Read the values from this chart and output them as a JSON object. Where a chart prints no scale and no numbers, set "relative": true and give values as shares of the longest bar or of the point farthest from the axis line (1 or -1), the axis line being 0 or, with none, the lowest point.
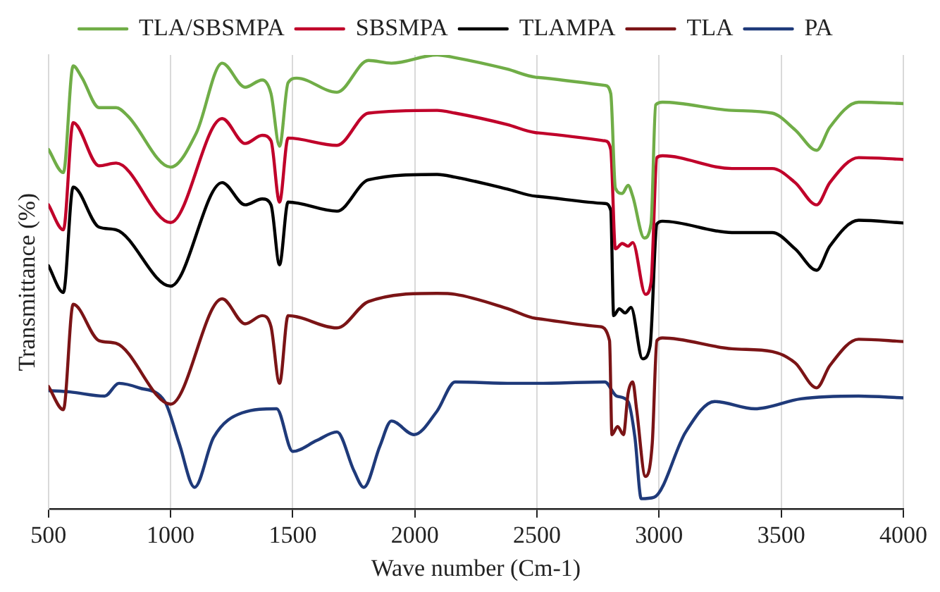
{
  "chart_data": {
    "type": "line",
    "relative": true,
    "xlabel": "Wave number (Cm-1)",
    "ylabel": "Transmittance (%)",
    "xlim": [
      500,
      4000
    ],
    "xticks": [
      500,
      1000,
      1500,
      2000,
      2500,
      3000,
      3500,
      4000
    ],
    "grid": "x",
    "legend": "top",
    "marker": "none",
    "line_style": "solid",
    "series": [
      {
        "name": "TLA/SBSMPA",
        "color": "#70ad47",
        "x": [
          500,
          561,
          601,
          636,
          707,
          777,
          824,
          1000,
          1106,
          1211,
          1305,
          1375,
          1411,
          1446,
          1481,
          1516,
          1681,
          1810,
          1904,
          2091,
          2165,
          2377,
          2495,
          2778,
          2802,
          2821,
          2849,
          2873,
          2892,
          2939,
          2967,
          2986,
          3014,
          3298,
          3463,
          3557,
          3645,
          3699,
          3817,
          4000
        ],
        "values": [
          0.792,
          0.741,
          0.976,
          0.951,
          0.884,
          0.884,
          0.866,
          0.753,
          0.829,
          0.982,
          0.929,
          0.945,
          0.915,
          0.799,
          0.939,
          0.949,
          0.918,
          0.988,
          0.982,
          1,
          0.994,
          0.969,
          0.951,
          0.933,
          0.915,
          0.707,
          0.695,
          0.713,
          0.689,
          0.597,
          0.628,
          0.89,
          0.896,
          0.878,
          0.872,
          0.835,
          0.79,
          0.841,
          0.896,
          0.893
        ]
      },
      {
        "name": "SBSMPA",
        "color": "#c0002a",
        "x": [
          500,
          561,
          601,
          707,
          777,
          1000,
          1211,
          1305,
          1375,
          1411,
          1446,
          1481,
          1681,
          1810,
          2091,
          2165,
          2377,
          2495,
          2778,
          2802,
          2821,
          2849,
          2873,
          2892,
          2944,
          2967,
          2991,
          3014,
          3298,
          3463,
          3557,
          3645,
          3699,
          3817,
          4000
        ],
        "values": [
          0.67,
          0.615,
          0.851,
          0.756,
          0.762,
          0.631,
          0.86,
          0.805,
          0.823,
          0.811,
          0.676,
          0.817,
          0.801,
          0.872,
          0.878,
          0.872,
          0.847,
          0.829,
          0.811,
          0.792,
          0.573,
          0.585,
          0.579,
          0.587,
          0.473,
          0.499,
          0.774,
          0.778,
          0.75,
          0.75,
          0.719,
          0.67,
          0.719,
          0.774,
          0.77
        ]
      },
      {
        "name": "TLAMPA",
        "color": "#000000",
        "x": [
          500,
          561,
          601,
          707,
          777,
          1000,
          1211,
          1305,
          1375,
          1411,
          1446,
          1481,
          1681,
          1810,
          2091,
          2165,
          2377,
          2495,
          2778,
          2802,
          2814,
          2837,
          2861,
          2885,
          2932,
          2963,
          2991,
          3014,
          3298,
          3463,
          3557,
          3645,
          3699,
          3817,
          4000
        ],
        "values": [
          0.536,
          0.477,
          0.709,
          0.621,
          0.615,
          0.491,
          0.719,
          0.67,
          0.683,
          0.67,
          0.538,
          0.676,
          0.656,
          0.725,
          0.737,
          0.731,
          0.705,
          0.689,
          0.673,
          0.658,
          0.426,
          0.441,
          0.432,
          0.444,
          0.331,
          0.359,
          0.628,
          0.634,
          0.609,
          0.609,
          0.573,
          0.526,
          0.579,
          0.636,
          0.63
        ]
      },
      {
        "name": "TLA",
        "color": "#7b1416",
        "x": [
          500,
          561,
          601,
          707,
          777,
          1000,
          1211,
          1305,
          1375,
          1411,
          1446,
          1481,
          1681,
          1810,
          2091,
          2165,
          2377,
          2495,
          2755,
          2797,
          2807,
          2830,
          2854,
          2873,
          2892,
          2908,
          2944,
          2972,
          2991,
          3014,
          3298,
          3463,
          3557,
          3645,
          3699,
          3817,
          4000
        ],
        "values": [
          0.27,
          0.219,
          0.451,
          0.371,
          0.365,
          0.231,
          0.463,
          0.408,
          0.426,
          0.402,
          0.277,
          0.426,
          0.399,
          0.457,
          0.475,
          0.473,
          0.442,
          0.42,
          0.402,
          0.371,
          0.164,
          0.182,
          0.164,
          0.255,
          0.28,
          0.219,
          0.072,
          0.145,
          0.371,
          0.377,
          0.353,
          0.347,
          0.322,
          0.267,
          0.316,
          0.374,
          0.369
        ]
      },
      {
        "name": "PA",
        "color": "#1f3a7a",
        "x": [
          500,
          589,
          730,
          789,
          871,
          976,
          1035,
          1098,
          1176,
          1293,
          1434,
          1500,
          1598,
          1681,
          1751,
          1791,
          1857,
          1904,
          1997,
          2091,
          2165,
          2401,
          2495,
          2778,
          2826,
          2873,
          2901,
          2927,
          2979,
          3109,
          3227,
          3392,
          3581,
          3817,
          4000
        ],
        "values": [
          0.261,
          0.258,
          0.249,
          0.277,
          0.267,
          0.237,
          0.145,
          0.048,
          0.158,
          0.212,
          0.221,
          0.127,
          0.151,
          0.17,
          0.084,
          0.048,
          0.139,
          0.194,
          0.164,
          0.216,
          0.28,
          0.277,
          0.277,
          0.28,
          0.249,
          0.237,
          0.158,
          0.023,
          0.026,
          0.17,
          0.237,
          0.221,
          0.243,
          0.249,
          0.245
        ]
      }
    ]
  }
}
